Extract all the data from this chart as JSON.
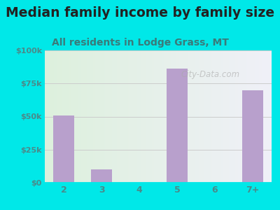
{
  "title": "Median family income by family size",
  "subtitle": "All residents in Lodge Grass, MT",
  "categories": [
    "2",
    "3",
    "4",
    "5",
    "6",
    "7+"
  ],
  "values": [
    51000,
    10000,
    0,
    86000,
    0,
    70000
  ],
  "bar_color": "#b8a0cc",
  "background_color": "#00e8e8",
  "plot_bg_left": "#ddf0dd",
  "plot_bg_right": "#f0f0f8",
  "title_color": "#222222",
  "subtitle_color": "#3a7a7a",
  "tick_color": "#4a8a8a",
  "ylim": [
    0,
    100000
  ],
  "yticks": [
    0,
    25000,
    50000,
    75000,
    100000
  ],
  "ytick_labels": [
    "$0",
    "$25k",
    "$50k",
    "$75k",
    "$100k"
  ],
  "watermark": "City-Data.com",
  "title_fontsize": 13.5,
  "subtitle_fontsize": 10
}
